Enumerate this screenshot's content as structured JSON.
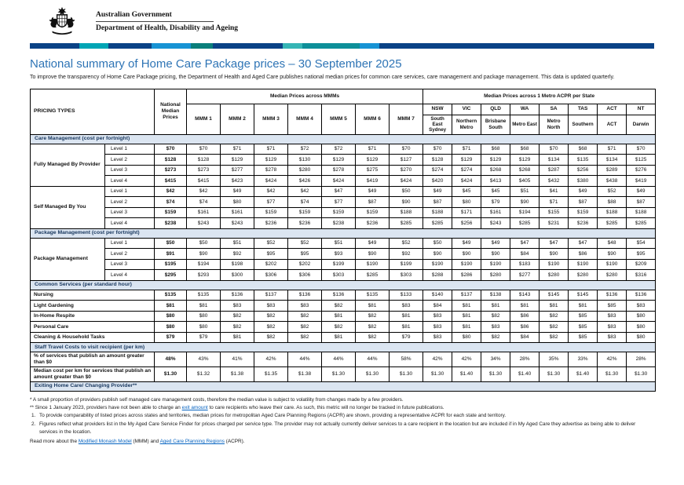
{
  "colors": {
    "accent_blue": "#2e74b5",
    "section_bg": "#dbe5f1",
    "link_blue": "#0563c1",
    "brand_navy": "#0a4286",
    "brand_teal": "#00a5b5"
  },
  "gov_header": {
    "government": "Australian Government",
    "department": "Department of Health, Disability and Ageing"
  },
  "page": {
    "title": "National summary of Home Care Package prices – 30 September 2025",
    "intro": "To improve the transparency of Home Care Package pricing, the Department of Health and Aged Care publishes national median prices for common care services, care management and package management. This data is updated quarterly."
  },
  "table": {
    "pricing_types_label": "PRICING TYPES",
    "national_label": "National Median Prices",
    "mmm_group_label": "Median Prices across MMMs",
    "acpr_group_label": "Median Prices across 1 Metro ACPR per State",
    "mmm_cols": [
      "MMM 1",
      "MMM 2",
      "MMM 3",
      "MMM 4",
      "MMM 5",
      "MMM 6",
      "MMM 7"
    ],
    "states": [
      {
        "abbr": "NSW",
        "region": "South East Sydney"
      },
      {
        "abbr": "VIC",
        "region": "Northern Metro"
      },
      {
        "abbr": "QLD",
        "region": "Brisbane South"
      },
      {
        "abbr": "WA",
        "region": "Metro East"
      },
      {
        "abbr": "SA",
        "region": "Metro North"
      },
      {
        "abbr": "TAS",
        "region": "Southern"
      },
      {
        "abbr": "ACT",
        "region": "ACT"
      },
      {
        "abbr": "NT",
        "region": "Darwin"
      }
    ],
    "sections": [
      {
        "title": "Care Management (cost per fortnight)",
        "groups": [
          {
            "name": "Fully Managed By Provider",
            "rows": [
              {
                "label": "Level 1",
                "values": [
                  "$70",
                  "$70",
                  "$71",
                  "$71",
                  "$72",
                  "$72",
                  "$71",
                  "$70",
                  "$70",
                  "$71",
                  "$68",
                  "$68",
                  "$70",
                  "$68",
                  "$71",
                  "$70"
                ]
              },
              {
                "label": "Level 2",
                "values": [
                  "$128",
                  "$128",
                  "$129",
                  "$129",
                  "$130",
                  "$129",
                  "$129",
                  "$127",
                  "$128",
                  "$129",
                  "$129",
                  "$129",
                  "$134",
                  "$135",
                  "$134",
                  "$125"
                ]
              },
              {
                "label": "Level 3",
                "values": [
                  "$273",
                  "$273",
                  "$277",
                  "$278",
                  "$280",
                  "$278",
                  "$275",
                  "$270",
                  "$274",
                  "$274",
                  "$268",
                  "$268",
                  "$287",
                  "$256",
                  "$289",
                  "$276"
                ]
              },
              {
                "label": "Level 4",
                "values": [
                  "$415",
                  "$415",
                  "$423",
                  "$424",
                  "$426",
                  "$424",
                  "$419",
                  "$424",
                  "$420",
                  "$424",
                  "$413",
                  "$405",
                  "$432",
                  "$380",
                  "$438",
                  "$419"
                ]
              }
            ]
          },
          {
            "name": "Self Managed By You",
            "rows": [
              {
                "label": "Level 1",
                "values": [
                  "$42",
                  "$42",
                  "$49",
                  "$42",
                  "$42",
                  "$47",
                  "$49",
                  "$50",
                  "$49",
                  "$45",
                  "$45",
                  "$51",
                  "$41",
                  "$49",
                  "$52",
                  "$49"
                ]
              },
              {
                "label": "Level 2",
                "values": [
                  "$74",
                  "$74",
                  "$80",
                  "$77",
                  "$74",
                  "$77",
                  "$87",
                  "$90",
                  "$87",
                  "$80",
                  "$79",
                  "$90",
                  "$71",
                  "$87",
                  "$88",
                  "$87"
                ]
              },
              {
                "label": "Level 3",
                "values": [
                  "$159",
                  "$161",
                  "$161",
                  "$159",
                  "$159",
                  "$159",
                  "$159",
                  "$188",
                  "$188",
                  "$171",
                  "$161",
                  "$194",
                  "$155",
                  "$159",
                  "$188",
                  "$188"
                ]
              },
              {
                "label": "Level 4",
                "values": [
                  "$238",
                  "$243",
                  "$243",
                  "$236",
                  "$236",
                  "$238",
                  "$236",
                  "$285",
                  "$285",
                  "$256",
                  "$243",
                  "$285",
                  "$231",
                  "$236",
                  "$285",
                  "$285"
                ]
              }
            ]
          }
        ]
      },
      {
        "title": "Package Management (cost per fortnight)",
        "groups": [
          {
            "name": "Package Management",
            "rows": [
              {
                "label": "Level 1",
                "values": [
                  "$50",
                  "$50",
                  "$51",
                  "$52",
                  "$52",
                  "$51",
                  "$49",
                  "$52",
                  "$50",
                  "$49",
                  "$49",
                  "$47",
                  "$47",
                  "$47",
                  "$48",
                  "$54"
                ]
              },
              {
                "label": "Level 2",
                "values": [
                  "$91",
                  "$90",
                  "$92",
                  "$95",
                  "$95",
                  "$93",
                  "$90",
                  "$92",
                  "$90",
                  "$90",
                  "$90",
                  "$84",
                  "$90",
                  "$86",
                  "$90",
                  "$95"
                ]
              },
              {
                "label": "Level 3",
                "values": [
                  "$195",
                  "$194",
                  "$198",
                  "$202",
                  "$202",
                  "$199",
                  "$190",
                  "$199",
                  "$190",
                  "$190",
                  "$190",
                  "$183",
                  "$190",
                  "$190",
                  "$190",
                  "$209"
                ]
              },
              {
                "label": "Level 4",
                "values": [
                  "$295",
                  "$293",
                  "$300",
                  "$306",
                  "$306",
                  "$303",
                  "$285",
                  "$303",
                  "$288",
                  "$286",
                  "$280",
                  "$277",
                  "$280",
                  "$280",
                  "$280",
                  "$316"
                ]
              }
            ]
          }
        ]
      },
      {
        "title": "Common Services (per standard hour)",
        "rows": [
          {
            "label": "Nursing",
            "values": [
              "$135",
              "$135",
              "$136",
              "$137",
              "$136",
              "$136",
              "$135",
              "$133",
              "$140",
              "$137",
              "$138",
              "$143",
              "$145",
              "$145",
              "$136",
              "$136"
            ]
          },
          {
            "label": "Light Gardening",
            "values": [
              "$81",
              "$81",
              "$83",
              "$83",
              "$83",
              "$82",
              "$81",
              "$83",
              "$84",
              "$81",
              "$81",
              "$81",
              "$81",
              "$81",
              "$85",
              "$83"
            ]
          },
          {
            "label": "In-Home Respite",
            "values": [
              "$80",
              "$80",
              "$82",
              "$82",
              "$82",
              "$81",
              "$82",
              "$81",
              "$83",
              "$81",
              "$82",
              "$86",
              "$82",
              "$85",
              "$83",
              "$80"
            ]
          },
          {
            "label": "Personal Care",
            "values": [
              "$80",
              "$80",
              "$82",
              "$82",
              "$82",
              "$82",
              "$82",
              "$81",
              "$83",
              "$81",
              "$83",
              "$86",
              "$82",
              "$85",
              "$83",
              "$80"
            ]
          },
          {
            "label": "Cleaning & Household Tasks",
            "values": [
              "$79",
              "$79",
              "$81",
              "$82",
              "$82",
              "$81",
              "$82",
              "$79",
              "$83",
              "$80",
              "$82",
              "$84",
              "$82",
              "$85",
              "$83",
              "$80"
            ]
          }
        ]
      },
      {
        "title": "Staff Travel Costs to visit recipient (per km)",
        "rows": [
          {
            "label": "% of services that publish an amount greater than $0",
            "values": [
              "48%",
              "43%",
              "41%",
              "42%",
              "44%",
              "44%",
              "44%",
              "58%",
              "42%",
              "42%",
              "34%",
              "28%",
              "35%",
              "33%",
              "42%",
              "28%"
            ]
          },
          {
            "label": "Median cost per km for services that publish an amount greater than $0",
            "values": [
              "$1.30",
              "$1.32",
              "$1.38",
              "$1.35",
              "$1.38",
              "$1.30",
              "$1.30",
              "$1.30",
              "$1.30",
              "$1.40",
              "$1.30",
              "$1.40",
              "$1.30",
              "$1.40",
              "$1.30",
              "$1.30"
            ]
          }
        ]
      },
      {
        "title": "Exiting Home Care/ Changing Provider**",
        "rows": []
      }
    ]
  },
  "footnotes": {
    "fn1": "* A small proportion of providers publish self managed care management costs, therefore the median value is subject to volatility from changes made by a few providers.",
    "fn2_pre": "** Since 1 January 2023, providers have not been able to charge an ",
    "fn2_link": "exit amount",
    "fn2_post": " to care recipients who leave their care. As such, this metric will no longer be tracked in future publications.",
    "note1_num": "1.",
    "note1": "To provide comparability of listed prices across states and territories, median prices for metropolitan Aged Care Planning Regions (ACPR) are shown, providing a representative ACPR for each state and territory.",
    "note2_num": "2.",
    "note2": "Figures reflect what providers list in the My Aged Care Service Finder for prices charged per service type. The provider may not actually currently deliver services to a care recipient in the location but are included if in My Aged Care they advertise as being able to deliver services in the location.",
    "readmore_pre": "Read more about the ",
    "readmore_link1": "Modified Monash Model",
    "readmore_mid": " (MMM) and ",
    "readmore_link2": "Aged Care Planning Regions",
    "readmore_post": " (ACPR)."
  }
}
